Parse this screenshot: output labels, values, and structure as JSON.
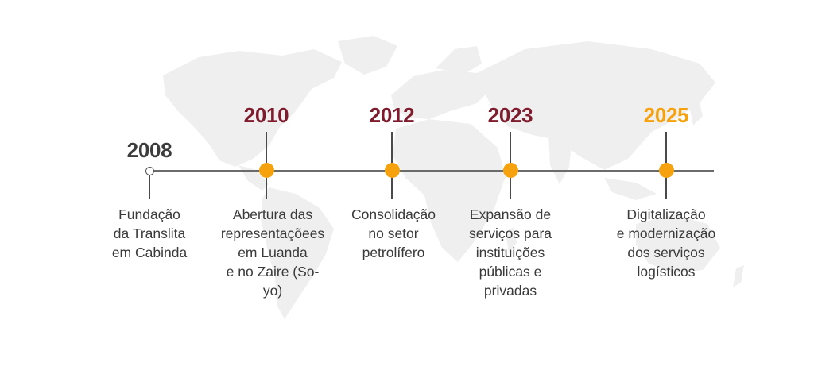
{
  "colors": {
    "accent_dark": "#7e1b2c",
    "accent_orange": "#f6a20f",
    "first_year": "#3c3c3c",
    "map": "#efefef"
  },
  "milestones": [
    {
      "year": "2008",
      "description": "Fundação\nda Translita\nem Cabinda",
      "marker": "hollow",
      "year_color": "#3c3c3c"
    },
    {
      "year": "2010",
      "description": "Abertura das\nrepresentaçõees\nem Luanda\ne no Zaire (So-\nyo)",
      "marker": "filled",
      "year_color": "#7e1b2c"
    },
    {
      "year": "2012",
      "description": "Consolidação\nno setor\npetrolífero",
      "marker": "filled",
      "year_color": "#7e1b2c"
    },
    {
      "year": "2023",
      "description": "Expansão de\nserviços para\ninstituições\npúblicas e\nprivadas",
      "marker": "filled",
      "year_color": "#7e1b2c"
    },
    {
      "year": "2025",
      "description": "Digitalização\ne modernização\ndos serviços\nlogísticos",
      "marker": "filled",
      "year_color": "#f6a20f"
    }
  ]
}
